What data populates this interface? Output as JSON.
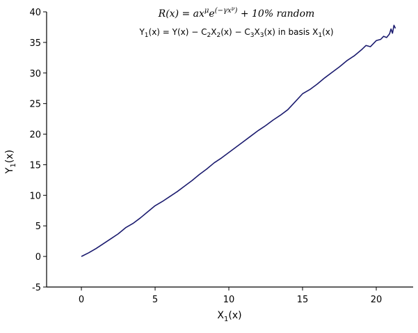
{
  "chart_data": {
    "type": "line",
    "title": [
      "R(x) = ax",
      "μ",
      "e",
      "(−γx",
      "ν",
      ")",
      " + 10% random"
    ],
    "subtitle": [
      "Y",
      "1",
      "(x) = Y(x) − C",
      "2",
      "X",
      "2",
      "(x) − C",
      "3",
      "X",
      "3",
      "(x) in basis X",
      "1",
      "(x)"
    ],
    "xlabel": [
      "X",
      "1",
      "(x)"
    ],
    "ylabel": [
      "Y",
      "1",
      "(x)"
    ],
    "x": [
      0,
      0.5,
      1,
      1.5,
      2,
      2.5,
      3,
      3.5,
      4,
      4.5,
      5,
      5.5,
      6,
      6.5,
      7,
      7.5,
      8,
      8.5,
      9,
      9.5,
      10,
      10.5,
      11,
      11.5,
      12,
      12.5,
      13,
      13.5,
      14,
      14.5,
      15,
      15.5,
      16,
      16.5,
      17,
      17.5,
      18,
      18.5,
      19,
      19.3,
      19.6,
      20,
      20.3,
      20.5,
      20.7,
      20.9,
      21,
      21.1,
      21.2,
      21.3
    ],
    "values": [
      0,
      0.6,
      1.3,
      2.1,
      2.9,
      3.7,
      4.7,
      5.4,
      6.3,
      7.3,
      8.3,
      9.0,
      9.8,
      10.6,
      11.5,
      12.4,
      13.4,
      14.3,
      15.3,
      16.1,
      17.0,
      17.9,
      18.8,
      19.7,
      20.6,
      21.4,
      22.3,
      23.1,
      24.0,
      25.3,
      26.6,
      27.3,
      28.2,
      29.2,
      30.1,
      31.0,
      32.0,
      32.8,
      33.8,
      34.5,
      34.3,
      35.3,
      35.5,
      36.0,
      35.8,
      36.4,
      37.2,
      36.5,
      37.8,
      37.3
    ],
    "color": "#1a1a6e",
    "xlim": [
      -2.36,
      22.5
    ],
    "xticks": [
      0,
      5,
      10,
      15,
      20
    ],
    "ylim": [
      -5,
      40
    ],
    "yticks": [
      -5,
      0,
      5,
      10,
      15,
      20,
      25,
      30,
      35,
      40
    ]
  }
}
